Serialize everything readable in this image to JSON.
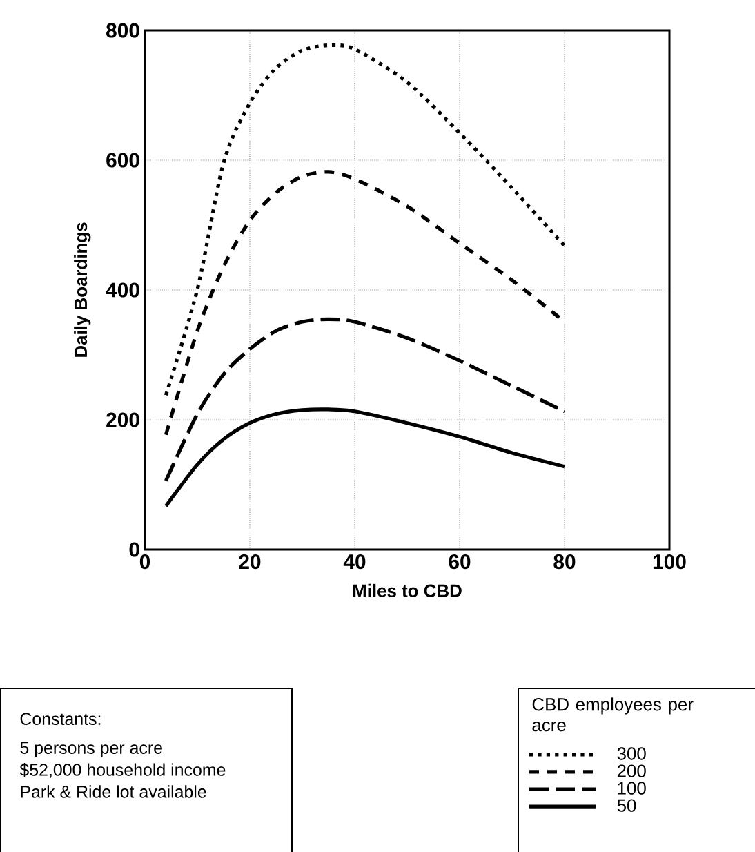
{
  "chart_data": {
    "type": "line",
    "xlabel": "Miles to CBD",
    "ylabel": "Daily Boardings",
    "legend_title": "CBD employees per acre",
    "x": [
      4,
      10,
      15,
      20,
      25,
      30,
      35,
      40,
      50,
      60,
      70,
      80
    ],
    "series": [
      {
        "name": "300",
        "color": "#000000",
        "line_style": "dotted",
        "values": [
          238,
          401,
          596,
          688,
          742,
          769,
          777,
          771,
          720,
          642,
          557,
          468
        ]
      },
      {
        "name": "200",
        "color": "#000000",
        "line_style": "dashed",
        "values": [
          177,
          337,
          436,
          507,
          550,
          575,
          582,
          571,
          529,
          472,
          415,
          351
        ]
      },
      {
        "name": "100",
        "color": "#000000",
        "line_style": "dashed",
        "values": [
          106,
          209,
          270,
          309,
          337,
          351,
          355,
          351,
          326,
          291,
          252,
          213
        ]
      },
      {
        "name": "50",
        "color": "#000000",
        "line_style": "solid",
        "values": [
          67,
          131,
          170,
          195,
          209,
          215,
          216,
          213,
          195,
          174,
          149,
          128
        ]
      }
    ],
    "xlim": [
      0,
      100
    ],
    "xticks": [
      0,
      20,
      40,
      60,
      80,
      100
    ],
    "ylim": [
      0,
      800
    ],
    "yticks": [
      0,
      200,
      400,
      600,
      800
    ],
    "grid": true,
    "legend": "bottom right",
    "annotations": [
      "Constants:",
      "5 persons per acre",
      "$52,000 household income",
      "Park & Ride lot available"
    ]
  }
}
